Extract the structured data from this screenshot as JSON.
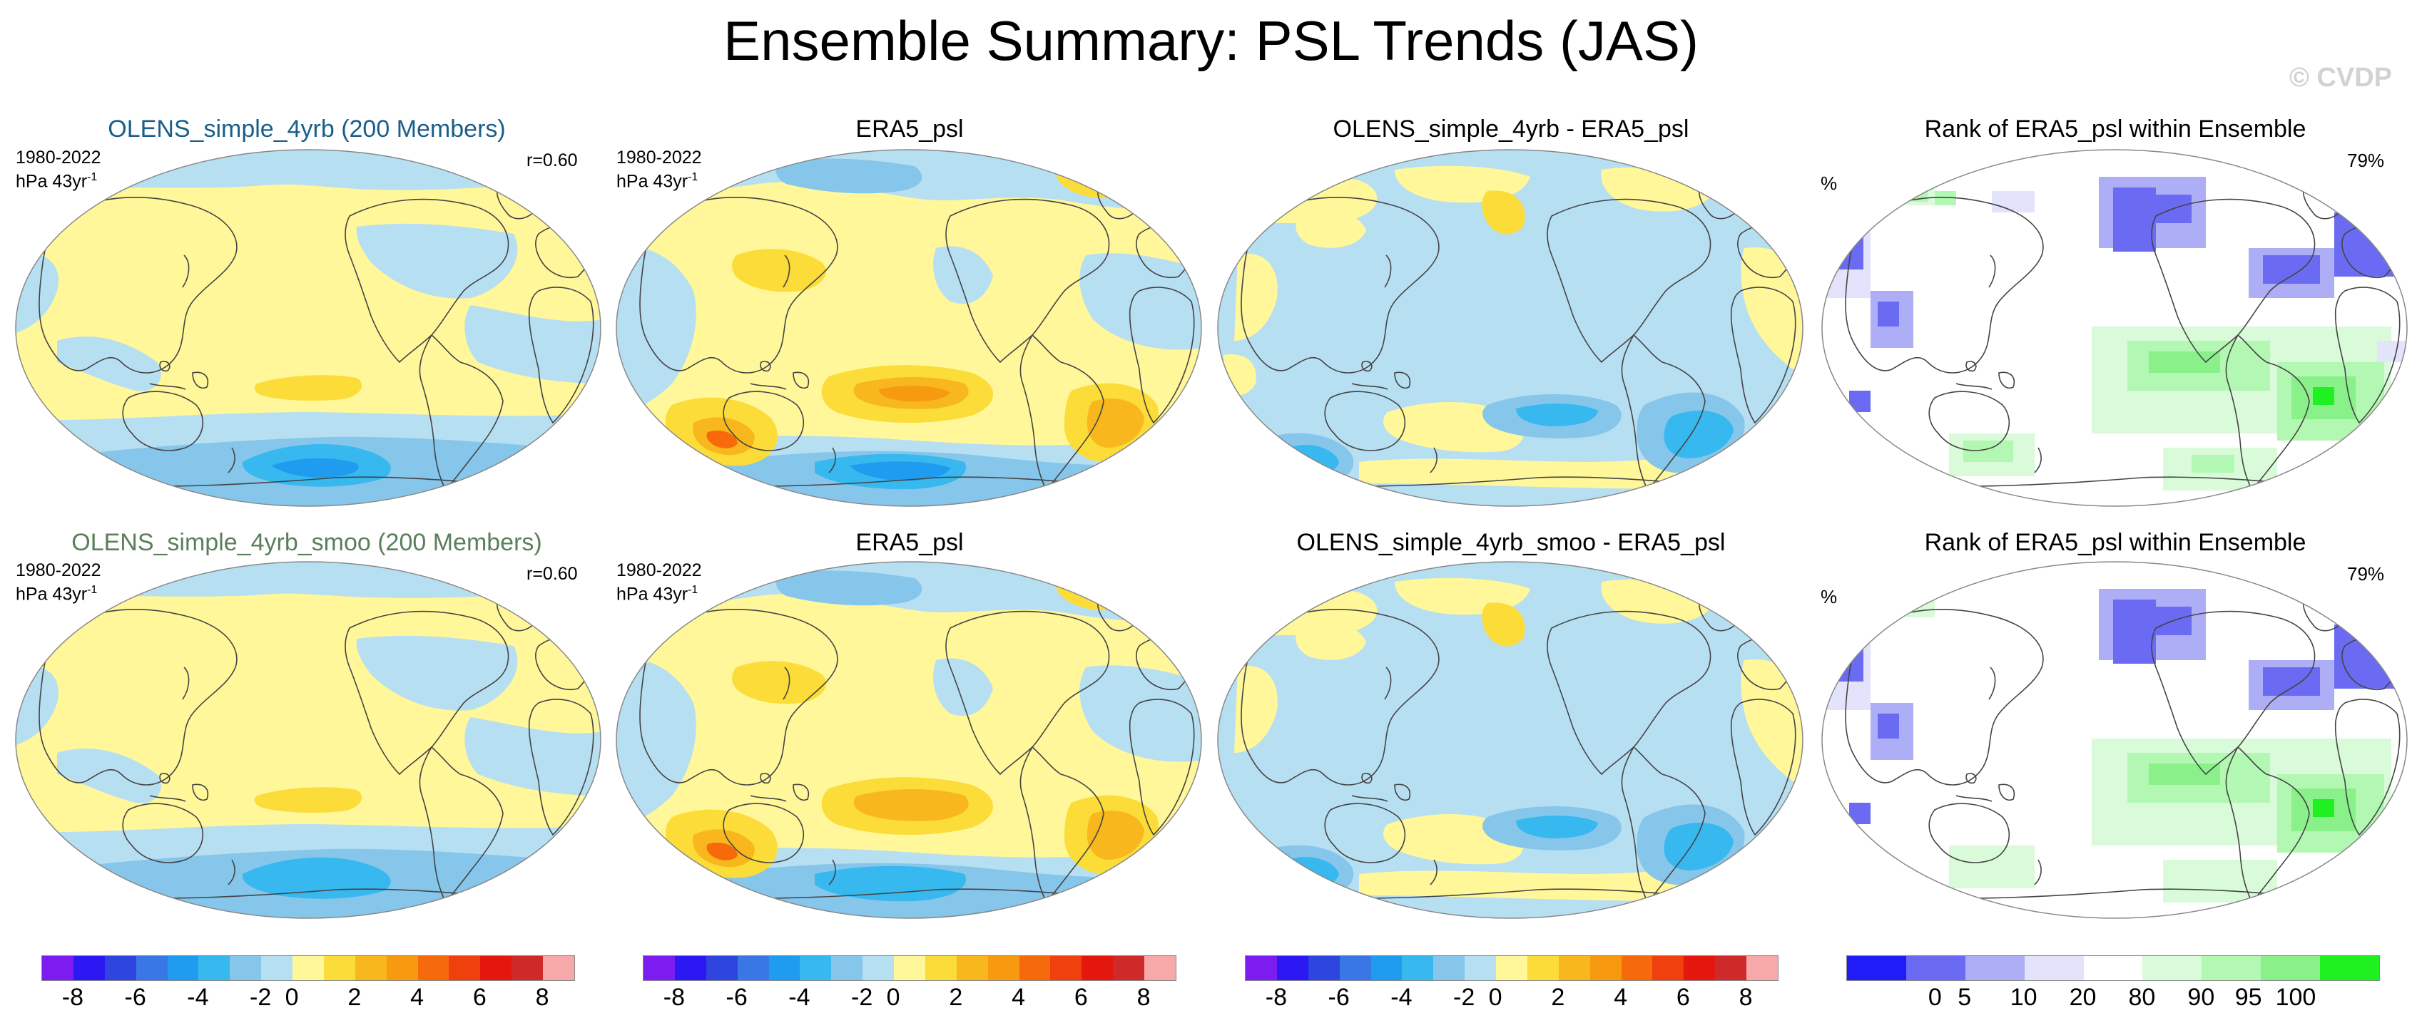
{
  "title": "Ensemble Summary: PSL Trends (JAS)",
  "watermark": "© CVDP",
  "colors": {
    "model_title_1": "#1a5e8a",
    "model_title_2": "#5a7f5a",
    "scale": [
      "#7d1cf0",
      "#2b18f2",
      "#2e45e0",
      "#3a77e6",
      "#1f9cf0",
      "#37b8ef",
      "#86c6ea",
      "#b7dff2",
      "#fff79a",
      "#fbdc38",
      "#f8b81d",
      "#f89a10",
      "#f76a0c",
      "#f0400e",
      "#e3170e",
      "#cf2a2a",
      "#f7a9a9"
    ],
    "rank_scale": [
      "#1f1cf7",
      "#6a6bf2",
      "#adaef5",
      "#e3e3fb",
      "#ffffff",
      "#d9fbd9",
      "#b2f7b2",
      "#8af08a",
      "#1ff01f"
    ]
  },
  "row1": {
    "p1": {
      "title": "OLENS_simple_4yrb (200 Members)",
      "years": "1980-2022",
      "units": "hPa 43yr",
      "units_sup": "-1",
      "r": "r=0.60"
    },
    "p2": {
      "title": "ERA5_psl",
      "years": "1980-2022",
      "units": "hPa 43yr",
      "units_sup": "-1"
    },
    "p3": {
      "title": "OLENS_simple_4yrb - ERA5_psl"
    },
    "p4": {
      "title": "Rank of ERA5_psl within Ensemble",
      "pct_label": "%",
      "pct_value": "79%"
    }
  },
  "row2": {
    "p1": {
      "title": "OLENS_simple_4yrb_smoo (200 Members)",
      "years": "1980-2022",
      "units": "hPa 43yr",
      "units_sup": "-1",
      "r": "r=0.60"
    },
    "p2": {
      "title": "ERA5_psl",
      "years": "1980-2022",
      "units": "hPa 43yr",
      "units_sup": "-1"
    },
    "p3": {
      "title": "OLENS_simple_4yrb_smoo - ERA5_psl"
    },
    "p4": {
      "title": "Rank of ERA5_psl within Ensemble",
      "pct_label": "%",
      "pct_value": "79%"
    }
  },
  "colorbars": {
    "trend_labels": [
      "-8",
      "-6",
      "-4",
      "-2",
      "0",
      "2",
      "4",
      "6",
      "8"
    ],
    "rank_labels": [
      "0",
      "5",
      "10",
      "20",
      "80",
      "90",
      "95",
      "100"
    ]
  }
}
